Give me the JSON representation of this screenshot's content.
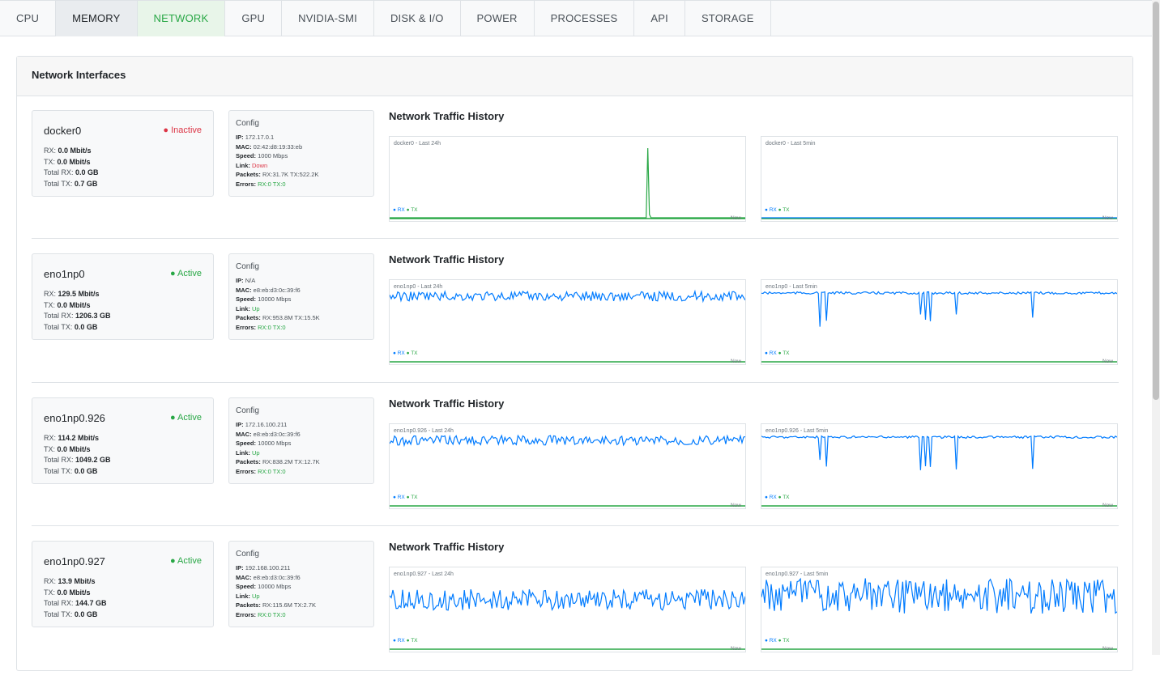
{
  "tabs": [
    "CPU",
    "MEMORY",
    "NETWORK",
    "GPU",
    "NVIDIA-SMI",
    "DISK & I/O",
    "POWER",
    "PROCESSES",
    "API",
    "STORAGE"
  ],
  "active_tab": "NETWORK",
  "panel_title": "Network Interfaces",
  "labels": {
    "config": "Config",
    "history": "Network Traffic History",
    "legend_rx": "● RX",
    "legend_tx": "● TX",
    "now": "Now",
    "rx": "RX:",
    "tx": "TX:",
    "total_rx": "Total RX:",
    "total_tx": "Total TX:",
    "ip": "IP:",
    "mac": "MAC:",
    "speed": "Speed:",
    "link": "Link:",
    "packets": "Packets:",
    "errors": "Errors:"
  },
  "colors": {
    "rx": "#007bff",
    "tx": "#28a745",
    "active": "#28a745",
    "inactive": "#dc3545"
  },
  "interfaces": [
    {
      "name": "docker0",
      "status": "● Inactive",
      "state": "inactive",
      "rx": "0.0 Mbit/s",
      "tx": "0.0 Mbit/s",
      "total_rx": "0.0 GB",
      "total_tx": "0.7 GB",
      "ip": "172.17.0.1",
      "mac": "02:42:d8:19:33:eb",
      "speed": "1000 Mbps",
      "link": "Down",
      "packets": "RX:31.7K TX:522.2K",
      "errors": "RX:0 TX:0",
      "chart24_title": "docker0 - Last 24h",
      "chart5_title": "docker0 - Last 5min",
      "chart_data": [
        {
          "type": "line",
          "title": "docker0 - Last 24h",
          "series": [
            {
              "name": "RX",
              "values": []
            },
            {
              "name": "TX",
              "values": []
            }
          ]
        },
        {
          "type": "line",
          "title": "docker0 - Last 5min",
          "series": [
            {
              "name": "RX",
              "values": []
            },
            {
              "name": "TX",
              "values": []
            }
          ]
        }
      ]
    },
    {
      "name": "eno1np0",
      "status": "● Active",
      "state": "active",
      "rx": "129.5 Mbit/s",
      "tx": "0.0 Mbit/s",
      "total_rx": "1206.3 GB",
      "total_tx": "0.0 GB",
      "ip": "N/A",
      "mac": "e8:eb:d3:0c:39:f6",
      "speed": "10000 Mbps",
      "link": "Up",
      "packets": "RX:953.8M TX:15.5K",
      "errors": "RX:0 TX:0",
      "chart24_title": "eno1np0 - Last 24h",
      "chart5_title": "eno1np0 - Last 5min",
      "chart_data": [
        {
          "type": "line",
          "title": "eno1np0 - Last 24h",
          "series": [
            {
              "name": "RX",
              "values": []
            },
            {
              "name": "TX",
              "values": []
            }
          ]
        },
        {
          "type": "line",
          "title": "eno1np0 - Last 5min",
          "series": [
            {
              "name": "RX",
              "values": []
            },
            {
              "name": "TX",
              "values": []
            }
          ]
        }
      ]
    },
    {
      "name": "eno1np0.926",
      "status": "● Active",
      "state": "active",
      "rx": "114.2 Mbit/s",
      "tx": "0.0 Mbit/s",
      "total_rx": "1049.2 GB",
      "total_tx": "0.0 GB",
      "ip": "172.16.100.211",
      "mac": "e8:eb:d3:0c:39:f6",
      "speed": "10000 Mbps",
      "link": "Up",
      "packets": "RX:838.2M TX:12.7K",
      "errors": "RX:0 TX:0",
      "chart24_title": "eno1np0.926 - Last 24h",
      "chart5_title": "eno1np0.926 - Last 5min",
      "chart_data": [
        {
          "type": "line",
          "title": "eno1np0.926 - Last 24h",
          "series": [
            {
              "name": "RX",
              "values": []
            },
            {
              "name": "TX",
              "values": []
            }
          ]
        },
        {
          "type": "line",
          "title": "eno1np0.926 - Last 5min",
          "series": [
            {
              "name": "RX",
              "values": []
            },
            {
              "name": "TX",
              "values": []
            }
          ]
        }
      ]
    },
    {
      "name": "eno1np0.927",
      "status": "● Active",
      "state": "active",
      "rx": "13.9 Mbit/s",
      "tx": "0.0 Mbit/s",
      "total_rx": "144.7 GB",
      "total_tx": "0.0 GB",
      "ip": "192.168.100.211",
      "mac": "e8:eb:d3:0c:39:f6",
      "speed": "10000 Mbps",
      "link": "Up",
      "packets": "RX:115.6M TX:2.7K",
      "errors": "RX:0 TX:0",
      "chart24_title": "eno1np0.927 - Last 24h",
      "chart5_title": "eno1np0.927 - Last 5min",
      "chart_data": [
        {
          "type": "line",
          "title": "eno1np0.927 - Last 24h",
          "series": [
            {
              "name": "RX",
              "values": []
            },
            {
              "name": "TX",
              "values": []
            }
          ]
        },
        {
          "type": "line",
          "title": "eno1np0.927 - Last 5min",
          "series": [
            {
              "name": "RX",
              "values": []
            },
            {
              "name": "TX",
              "values": []
            }
          ]
        }
      ]
    }
  ]
}
